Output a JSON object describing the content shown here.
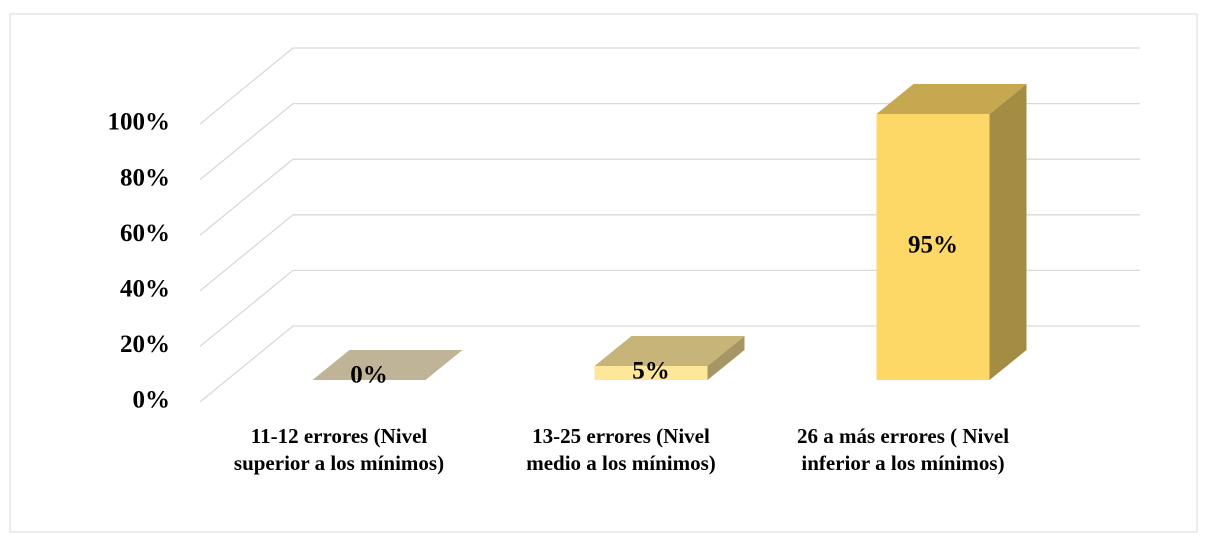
{
  "chart_data": {
    "type": "bar3d",
    "categories": [
      "11-12 errores (Nivel superior a los mínimos)",
      "13-25 errores (Nivel medio a los mínimos)",
      "26 a más errores ( Nivel inferior a los mínimos)"
    ],
    "values": [
      0,
      5,
      95
    ],
    "value_labels": [
      "0%",
      "5%",
      "95%"
    ],
    "colors": [
      "#c9bd9f",
      "#ffe79a",
      "#fdd866"
    ],
    "ylim": [
      0,
      100
    ],
    "yticks": [
      {
        "value": 0,
        "label": "0%"
      },
      {
        "value": 20,
        "label": "20%"
      },
      {
        "value": 40,
        "label": "40%"
      },
      {
        "value": 60,
        "label": "60%"
      },
      {
        "value": 80,
        "label": "80%"
      },
      {
        "value": 100,
        "label": "100%"
      }
    ],
    "grid": true
  }
}
